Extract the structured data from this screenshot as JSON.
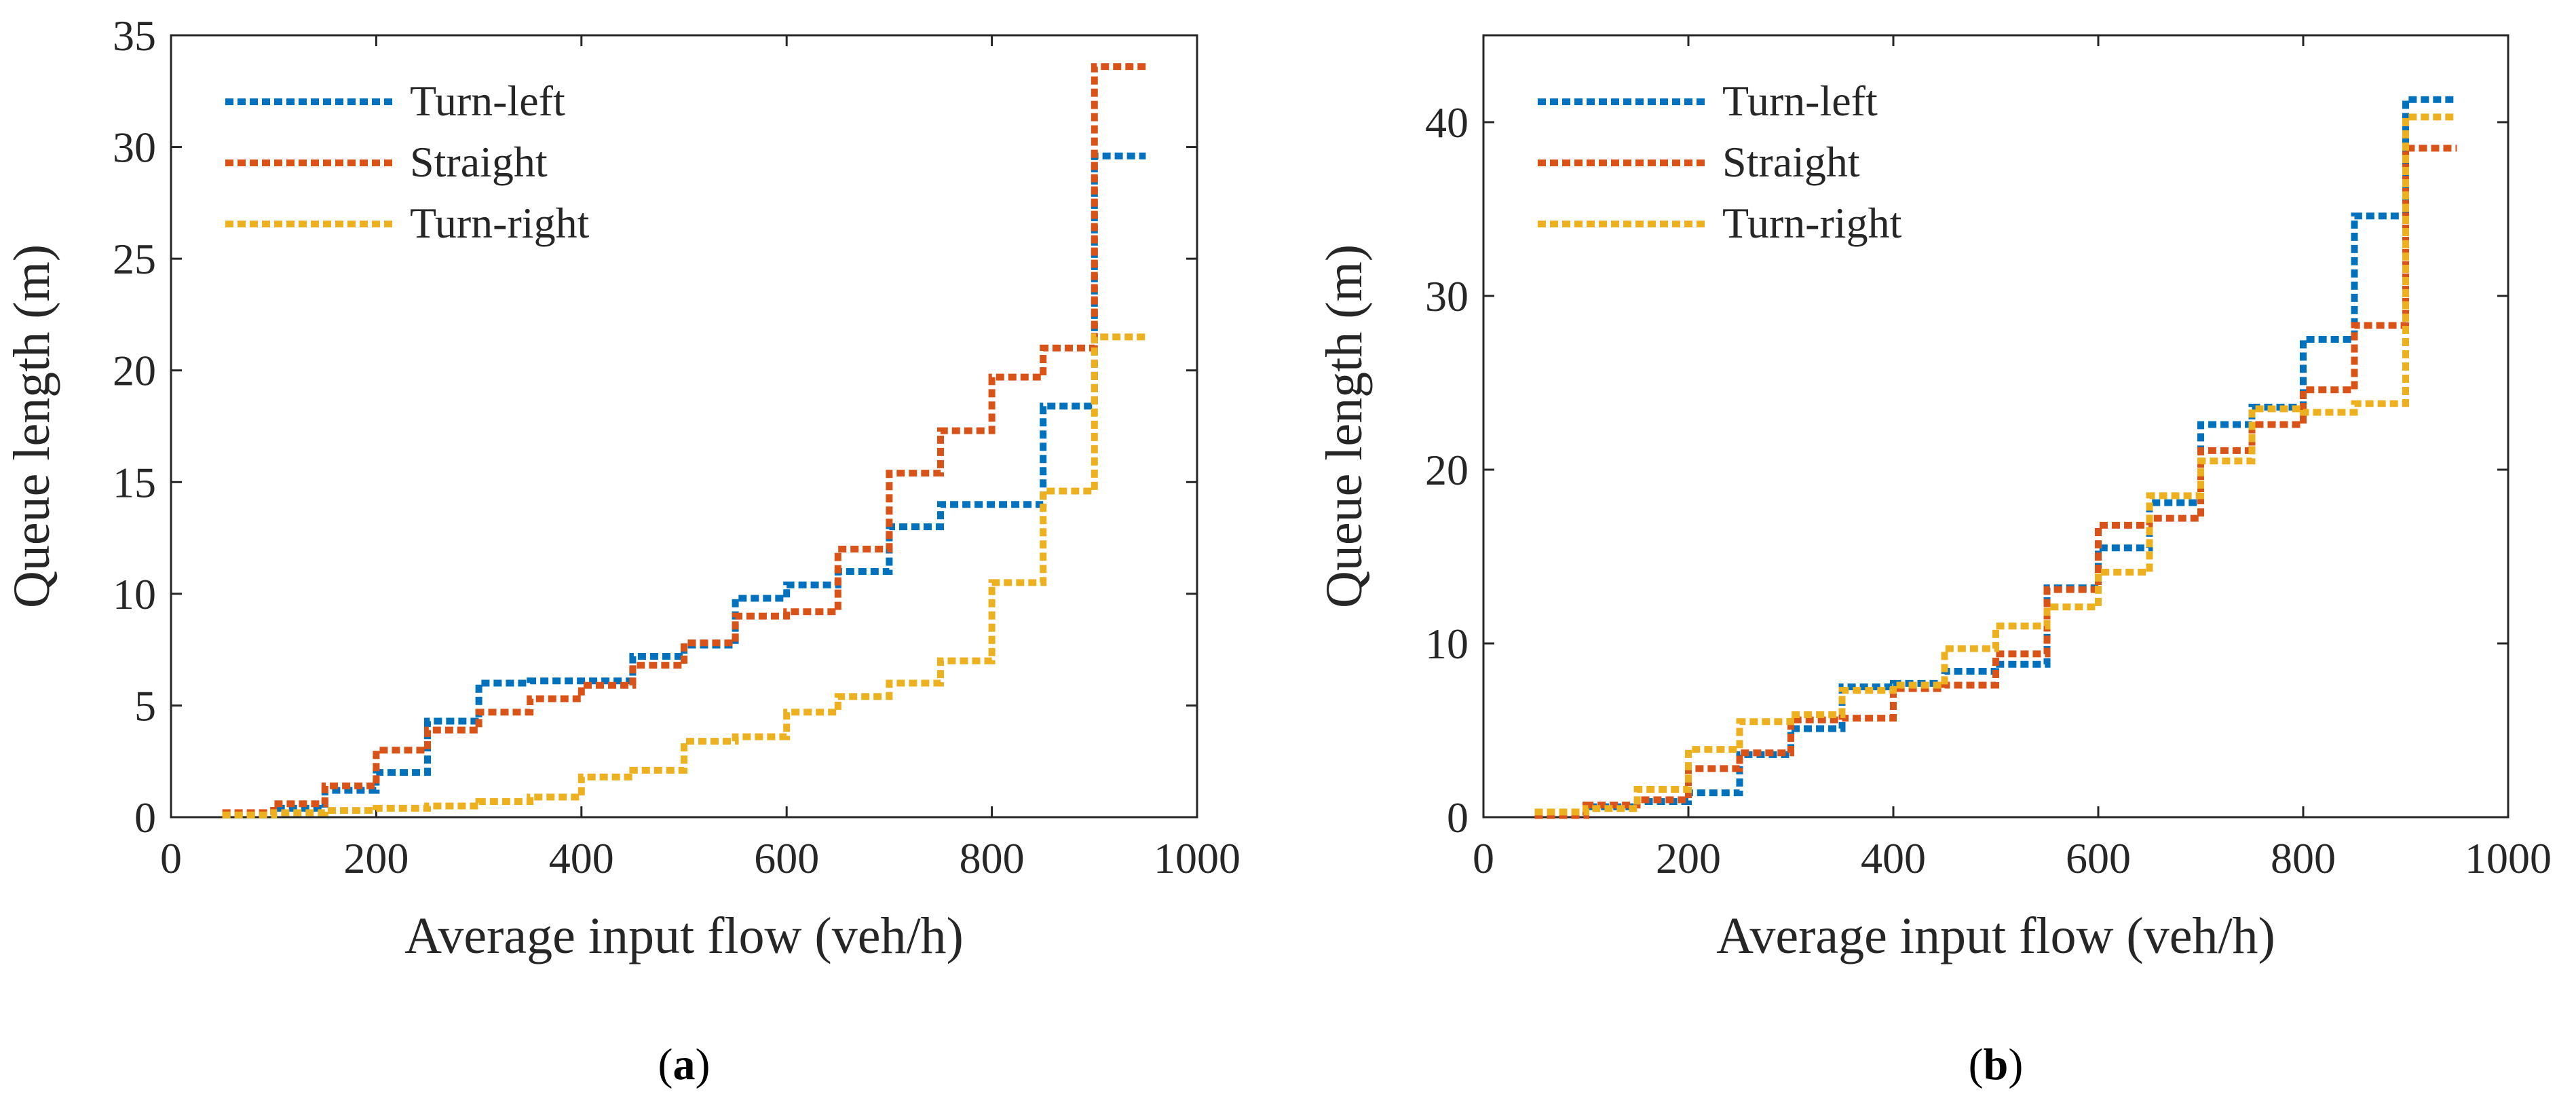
{
  "chart_data": [
    {
      "type": "line",
      "step": true,
      "xlabel": "Average input flow (veh/h)",
      "ylabel": "Queue length (m)",
      "xlim": [
        0,
        1000
      ],
      "ylim": [
        0,
        35
      ],
      "xticks": [
        0,
        200,
        400,
        600,
        800,
        1000
      ],
      "yticks": [
        0,
        5,
        10,
        15,
        20,
        25,
        30,
        35
      ],
      "grid": false,
      "legend_position": "top-left",
      "panel_label": "a",
      "x": [
        50,
        100,
        150,
        200,
        250,
        300,
        350,
        400,
        450,
        500,
        550,
        600,
        650,
        700,
        750,
        800,
        850,
        900,
        950
      ],
      "series": [
        {
          "name": "Turn-left",
          "color": "#0072BD",
          "values": [
            0.1,
            0.4,
            1.2,
            2.0,
            4.3,
            6.0,
            6.1,
            6.1,
            7.2,
            7.7,
            9.8,
            10.4,
            11.0,
            13.0,
            14.0,
            14.0,
            18.4,
            29.6,
            29.6
          ]
        },
        {
          "name": "Straight",
          "color": "#D95319",
          "values": [
            0.2,
            0.6,
            1.4,
            3.0,
            3.9,
            4.7,
            5.3,
            5.9,
            6.8,
            7.8,
            9.0,
            9.2,
            12.0,
            15.4,
            17.3,
            19.7,
            21.0,
            33.6,
            33.6
          ]
        },
        {
          "name": "Turn-right",
          "color": "#EDB120",
          "values": [
            0.1,
            0.2,
            0.3,
            0.4,
            0.5,
            0.7,
            0.9,
            1.8,
            2.1,
            3.4,
            3.6,
            4.7,
            5.4,
            6.0,
            7.0,
            10.5,
            14.6,
            21.5,
            21.5
          ]
        }
      ]
    },
    {
      "type": "line",
      "step": true,
      "xlabel": "Average input flow (veh/h)",
      "ylabel": "Queue length (m)",
      "xlim": [
        0,
        1000
      ],
      "ylim": [
        0,
        45
      ],
      "xticks": [
        0,
        200,
        400,
        600,
        800,
        1000
      ],
      "yticks": [
        0,
        10,
        20,
        30,
        40
      ],
      "grid": false,
      "legend_position": "top-left",
      "panel_label": "b",
      "x": [
        50,
        100,
        150,
        200,
        250,
        300,
        350,
        400,
        450,
        500,
        550,
        600,
        650,
        700,
        750,
        800,
        850,
        900,
        950
      ],
      "series": [
        {
          "name": "Turn-left",
          "color": "#0072BD",
          "values": [
            0.2,
            0.6,
            0.9,
            1.4,
            3.6,
            5.1,
            7.5,
            7.7,
            8.4,
            8.8,
            13.2,
            15.5,
            18.1,
            22.6,
            23.6,
            27.5,
            34.6,
            41.3,
            41.3
          ]
        },
        {
          "name": "Straight",
          "color": "#D95319",
          "values": [
            0.1,
            0.7,
            1.0,
            2.8,
            3.7,
            5.6,
            5.7,
            7.4,
            7.6,
            9.4,
            13.1,
            16.8,
            17.2,
            21.1,
            22.6,
            24.6,
            28.3,
            38.5,
            38.5
          ]
        },
        {
          "name": "Turn-right",
          "color": "#EDB120",
          "values": [
            0.3,
            0.5,
            1.6,
            3.9,
            5.5,
            5.9,
            7.3,
            7.6,
            9.7,
            11.0,
            12.1,
            14.1,
            18.5,
            20.5,
            23.5,
            23.3,
            23.8,
            40.3,
            40.3
          ]
        }
      ]
    }
  ]
}
